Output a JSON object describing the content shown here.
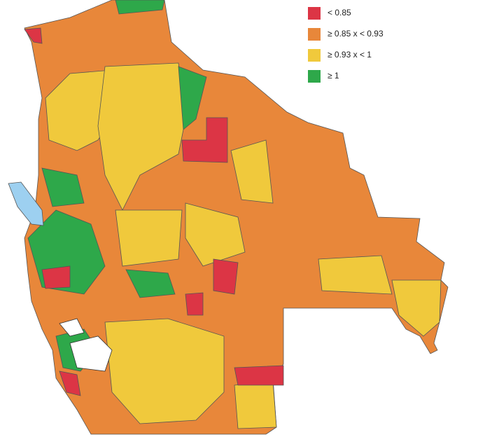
{
  "legend": {
    "items": [
      {
        "label": "< 0.85",
        "color": "#dc3545"
      },
      {
        "label": "≥ 0.85 x < 0.93",
        "color": "#e8873a"
      },
      {
        "label": "≥ 0.93 x < 1",
        "color": "#f0c93c"
      },
      {
        "label": "≥ 1",
        "color": "#2ea84a"
      }
    ]
  }
}
